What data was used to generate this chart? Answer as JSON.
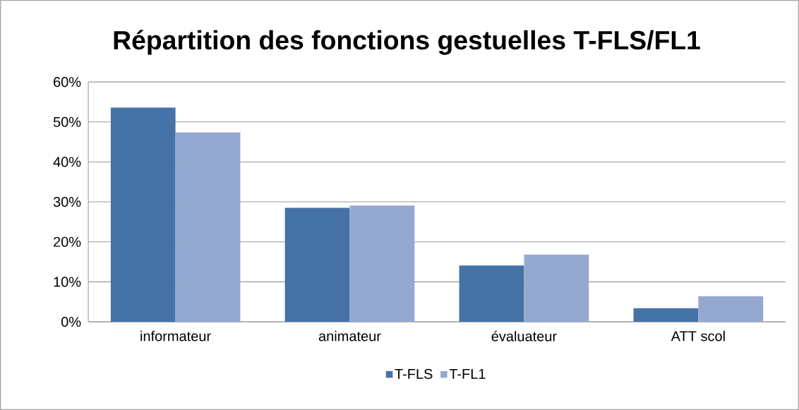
{
  "chart_data": {
    "type": "bar",
    "title": "Répartition des fonctions gestuelles T-FLS/FL1",
    "categories": [
      "informateur",
      "animateur",
      "évaluateur",
      "ATT scol"
    ],
    "series": [
      {
        "name": "T-FLS",
        "color": "#4572a7",
        "values": [
          53.6,
          28.5,
          14.1,
          3.4
        ]
      },
      {
        "name": "T-FL1",
        "color": "#95a9d0",
        "values": [
          47.4,
          29.1,
          16.8,
          6.4
        ]
      }
    ],
    "ylim": [
      0,
      60
    ],
    "yticks": [
      {
        "value": 0,
        "label": "0%"
      },
      {
        "value": 10,
        "label": "10%"
      },
      {
        "value": 20,
        "label": "20%"
      },
      {
        "value": 30,
        "label": "30%"
      },
      {
        "value": 40,
        "label": "40%"
      },
      {
        "value": 50,
        "label": "50%"
      },
      {
        "value": 60,
        "label": "60%"
      }
    ],
    "grid": "y",
    "legend": "bottom"
  }
}
